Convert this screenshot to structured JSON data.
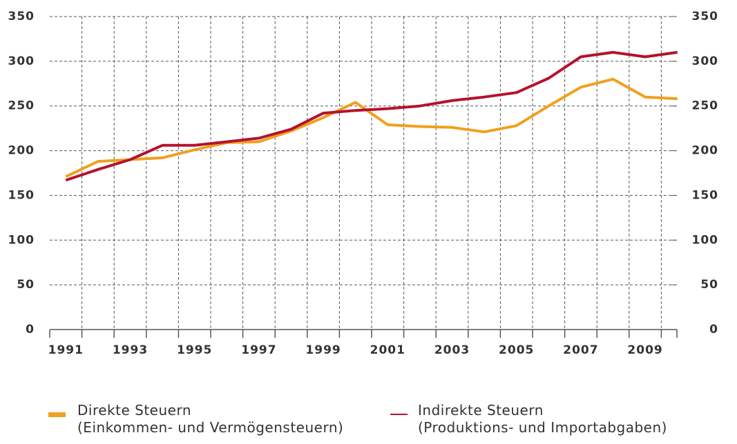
{
  "chart_data": {
    "type": "line",
    "categories": [
      "1991",
      null,
      "1993",
      null,
      "1995",
      null,
      "1997",
      null,
      "1999",
      null,
      "2001",
      null,
      "2003",
      null,
      "2005",
      null,
      "2007",
      null,
      "2009",
      null
    ],
    "series": [
      {
        "name": "Direkte Steuern\n(Einkommen- und Vermögensteuern)",
        "color": "#f0a01e",
        "width": 4,
        "values": [
          171,
          188,
          190,
          192,
          201,
          209,
          210,
          222,
          237,
          254,
          229,
          227,
          226,
          221,
          228,
          250,
          271,
          280,
          260,
          258
        ]
      },
      {
        "name": "Indirekte Steuern\n(Produktions- und Importabgaben)",
        "color": "#b5122d",
        "width": 4,
        "values": [
          167,
          179,
          190,
          206,
          206,
          210,
          214,
          224,
          242,
          245,
          247,
          250,
          256,
          260,
          265,
          281,
          305,
          310,
          305,
          310
        ]
      }
    ],
    "ylim": [
      0,
      350
    ],
    "yticks": [
      0,
      50,
      100,
      150,
      200,
      250,
      300,
      350
    ],
    "y2lim": [
      0,
      350
    ],
    "y2ticks": [
      0,
      50,
      100,
      150,
      200,
      250,
      300,
      350
    ],
    "grid": true
  }
}
